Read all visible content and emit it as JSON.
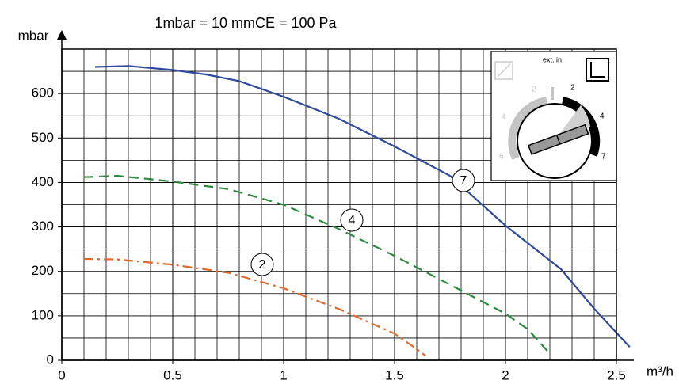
{
  "chart_data": {
    "type": "line",
    "title": "1mbar = 10 mmCE = 100 Pa",
    "y_label": "mbar",
    "x_label": "m³/h",
    "xlim": [
      0,
      2.5
    ],
    "xticks": [
      0,
      0.5,
      1,
      1.5,
      2,
      2.5
    ],
    "ylim": [
      0,
      700
    ],
    "yticks": [
      0,
      100,
      200,
      300,
      400,
      500,
      600
    ],
    "grid": true,
    "series": [
      {
        "name": "7",
        "color": "#2e4a9a",
        "line_style": "solid",
        "x": [
          0.15,
          0.3,
          0.5,
          0.65,
          0.8,
          1.0,
          1.25,
          1.5,
          1.75,
          2.0,
          2.25,
          2.4,
          2.5,
          2.56
        ],
        "values": [
          660,
          662,
          653,
          643,
          628,
          593,
          543,
          481,
          415,
          303,
          205,
          116,
          62,
          30
        ]
      },
      {
        "name": "4",
        "color": "#2e8b3e",
        "line_style": "dashed",
        "x": [
          0.1,
          0.25,
          0.5,
          0.75,
          1.0,
          1.25,
          1.5,
          1.75,
          2.0,
          2.1,
          2.2
        ],
        "values": [
          412,
          415,
          402,
          385,
          350,
          295,
          235,
          170,
          105,
          70,
          15
        ]
      },
      {
        "name": "2",
        "color": "#e06a2b",
        "line_style": "dashdot",
        "x": [
          0.1,
          0.25,
          0.5,
          0.75,
          1.0,
          1.25,
          1.5,
          1.6,
          1.64
        ],
        "values": [
          228,
          227,
          215,
          197,
          162,
          115,
          60,
          25,
          10
        ]
      }
    ]
  },
  "inset": {
    "label": "ext. in",
    "scale_grey": [
      "2",
      "4",
      "6"
    ],
    "scale_black": [
      "2",
      "4",
      "7"
    ]
  }
}
